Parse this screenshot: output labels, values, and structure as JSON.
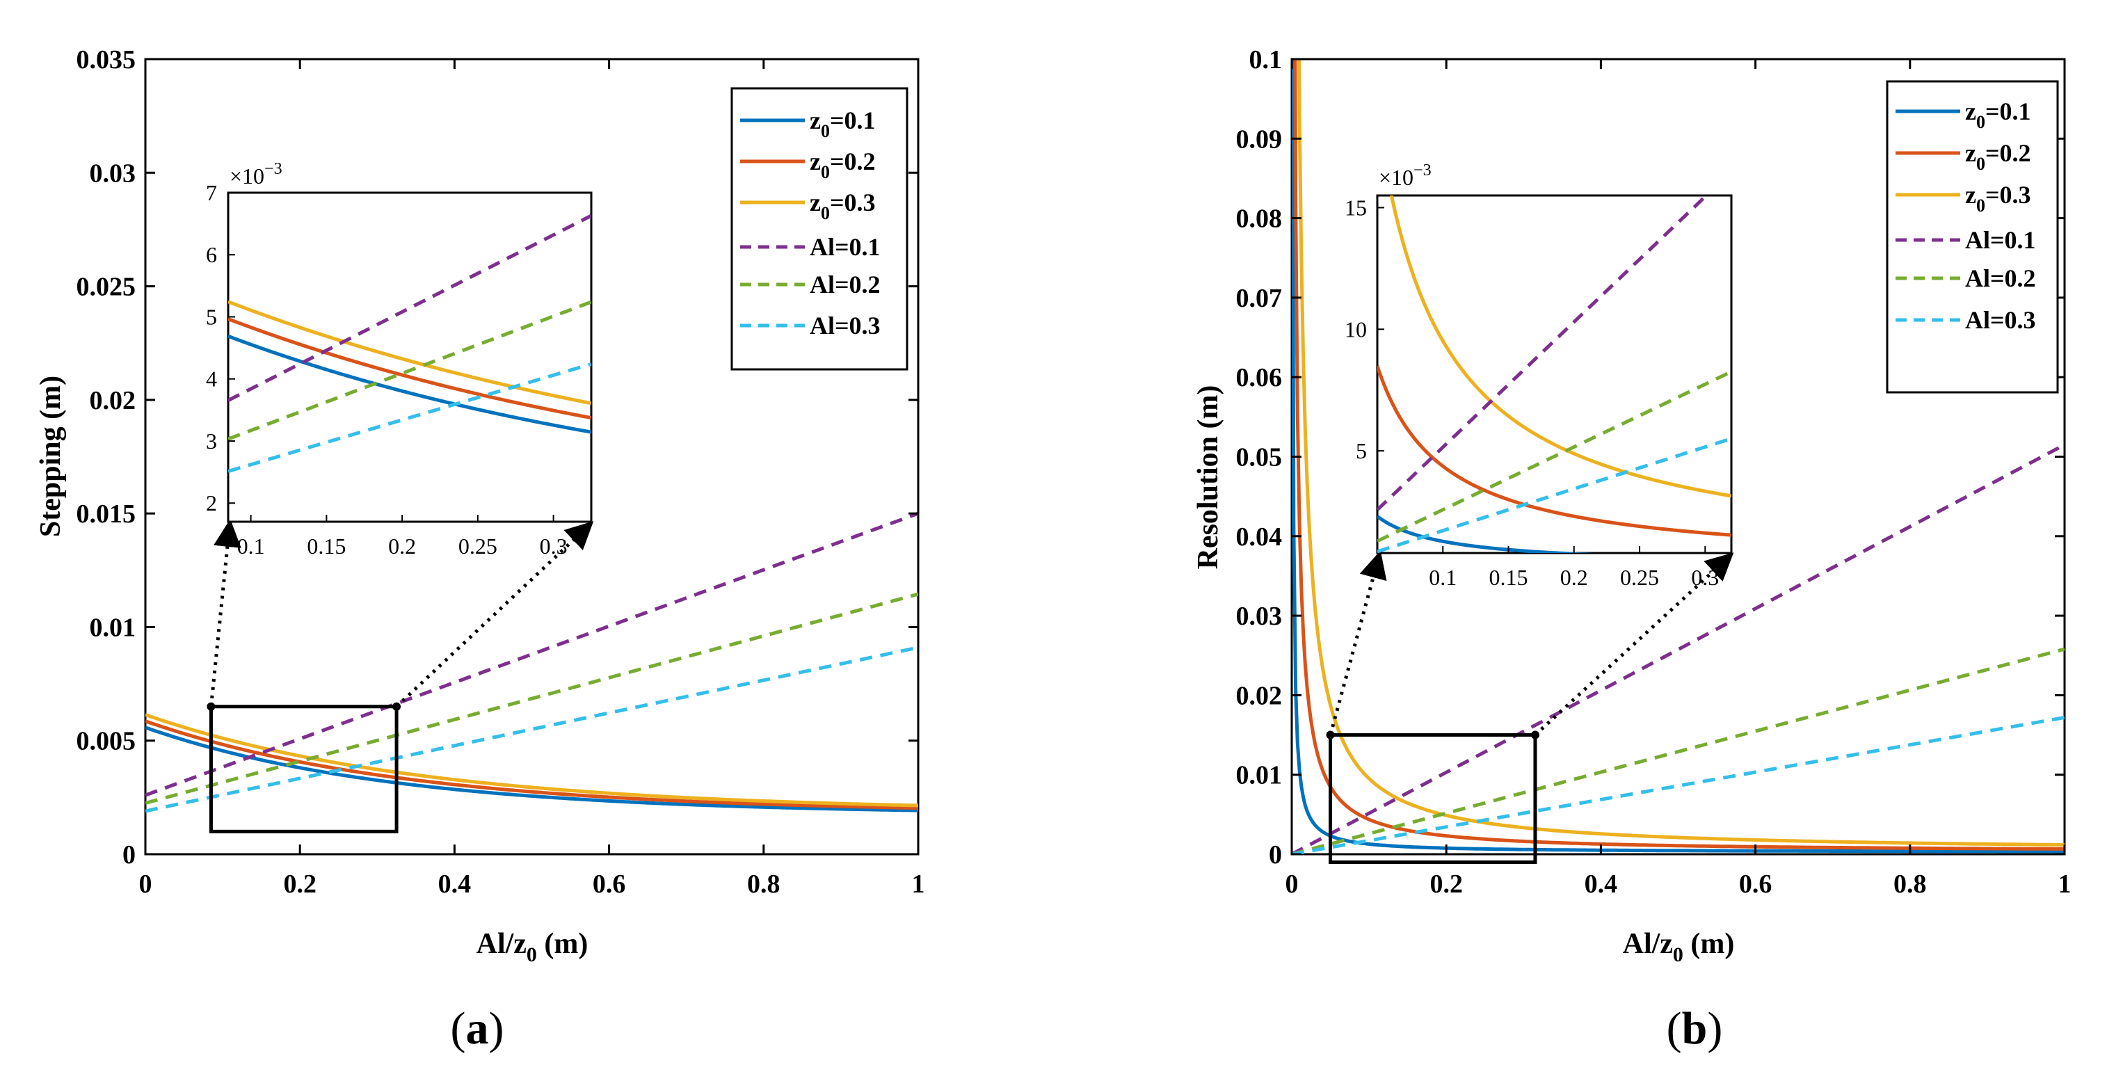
{
  "chart_data": [
    {
      "id": "a",
      "type": "line",
      "caption_letter": "a",
      "ylabel": "Stepping (m)",
      "xlabel_main": "Al/z",
      "xlabel_sub": "0",
      "xlabel_tail": " (m)",
      "xlim": [
        0,
        1
      ],
      "ylim": [
        0,
        0.035
      ],
      "xticks": [
        "0",
        "0.2",
        "0.4",
        "0.6",
        "0.8",
        "1"
      ],
      "yticks": [
        "0",
        "0.005",
        "0.01",
        "0.015",
        "0.02",
        "0.025",
        "0.03",
        "0.035"
      ],
      "legend_position": "top-right",
      "series": [
        {
          "name_main": "z",
          "name_sub": "0",
          "name_tail": "=0.1",
          "color": "#0072BD",
          "dash": "solid",
          "kind": "z",
          "p": 0.1
        },
        {
          "name_main": "z",
          "name_sub": "0",
          "name_tail": "=0.2",
          "color": "#D95319",
          "dash": "solid",
          "kind": "z",
          "p": 0.2
        },
        {
          "name_main": "z",
          "name_sub": "0",
          "name_tail": "=0.3",
          "color": "#EDB120",
          "dash": "solid",
          "kind": "z",
          "p": 0.3
        },
        {
          "name_main": "Al=0.1",
          "name_sub": "",
          "name_tail": "",
          "color": "#7E2F8E",
          "dash": "dashed",
          "kind": "al",
          "p": 0.1
        },
        {
          "name_main": "Al=0.2",
          "name_sub": "",
          "name_tail": "",
          "color": "#77AC30",
          "dash": "dashed",
          "kind": "al",
          "p": 0.2
        },
        {
          "name_main": "Al=0.3",
          "name_sub": "",
          "name_tail": "",
          "color": "#33BEEB",
          "dash": "dashed",
          "kind": "al",
          "p": 0.3
        }
      ],
      "inset": {
        "exponent_label": "×10",
        "exponent_power": "−3",
        "xlim": [
          0.085,
          0.325
        ],
        "ylim": [
          0.0017,
          0.007
        ],
        "xticks": [
          "0.1",
          "0.15",
          "0.2",
          "0.25",
          "0.3"
        ],
        "yticks": [
          "2",
          "3",
          "4",
          "5",
          "6",
          "7"
        ]
      },
      "zoom_box": {
        "xlim": [
          0.085,
          0.325
        ],
        "ylim": [
          0.001,
          0.0065
        ]
      }
    },
    {
      "id": "b",
      "type": "line",
      "caption_letter": "b",
      "ylabel": "Resolution (m)",
      "xlabel_main": "Al/z",
      "xlabel_sub": "0",
      "xlabel_tail": " (m)",
      "xlim": [
        0,
        1
      ],
      "ylim": [
        0,
        0.1
      ],
      "xticks": [
        "0",
        "0.2",
        "0.4",
        "0.6",
        "0.8",
        "1"
      ],
      "yticks": [
        "0",
        "0.01",
        "0.02",
        "0.03",
        "0.04",
        "0.05",
        "0.06",
        "0.07",
        "0.08",
        "0.09",
        "0.1"
      ],
      "legend_position": "top-right",
      "series": [
        {
          "name_main": "z",
          "name_sub": "0",
          "name_tail": "=0.1",
          "color": "#0072BD",
          "dash": "solid",
          "kind": "z",
          "p": 0.1
        },
        {
          "name_main": "z",
          "name_sub": "0",
          "name_tail": "=0.2",
          "color": "#D95319",
          "dash": "solid",
          "kind": "z",
          "p": 0.2
        },
        {
          "name_main": "z",
          "name_sub": "0",
          "name_tail": "=0.3",
          "color": "#EDB120",
          "dash": "solid",
          "kind": "z",
          "p": 0.3
        },
        {
          "name_main": "Al=0.1",
          "name_sub": "",
          "name_tail": "",
          "color": "#7E2F8E",
          "dash": "dashed",
          "kind": "al",
          "p": 0.1
        },
        {
          "name_main": "Al=0.2",
          "name_sub": "",
          "name_tail": "",
          "color": "#77AC30",
          "dash": "dashed",
          "kind": "al",
          "p": 0.2
        },
        {
          "name_main": "Al=0.3",
          "name_sub": "",
          "name_tail": "",
          "color": "#33BEEB",
          "dash": "dashed",
          "kind": "al",
          "p": 0.3
        }
      ],
      "inset": {
        "exponent_label": "×10",
        "exponent_power": "−3",
        "xlim": [
          0.05,
          0.32
        ],
        "ylim": [
          0.0008,
          0.0155
        ],
        "xticks": [
          "0.1",
          "0.15",
          "0.2",
          "0.25",
          "0.3"
        ],
        "yticks": [
          "5",
          "10",
          "15"
        ]
      },
      "zoom_box": {
        "xlim": [
          0.05,
          0.315
        ],
        "ylim": [
          -0.001,
          0.015
        ]
      }
    }
  ]
}
